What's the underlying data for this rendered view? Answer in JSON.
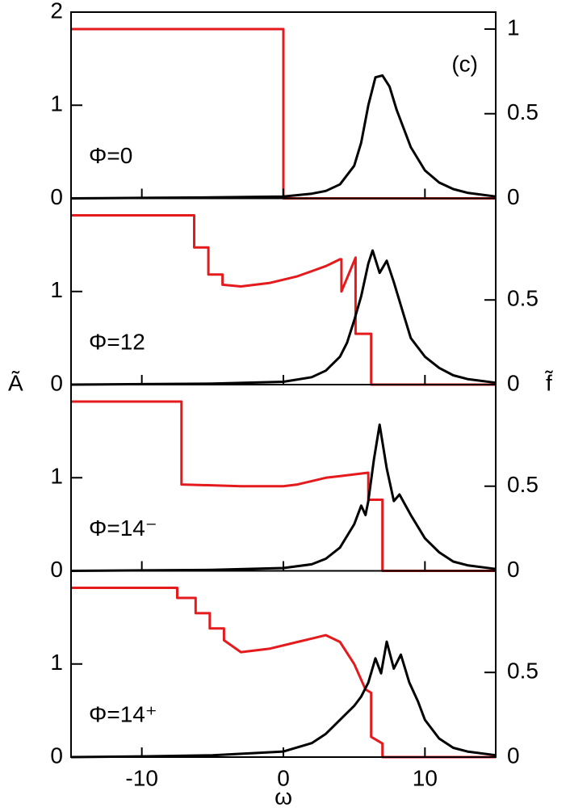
{
  "chart_data": [
    {
      "type": "line",
      "annotation": "Φ=0",
      "label": "(c)",
      "xlim": [
        -15,
        15
      ],
      "xticks": [
        -10,
        0,
        10
      ],
      "ylim": [
        0,
        2
      ],
      "yticks": [
        0,
        1,
        2
      ],
      "y2lim": [
        0,
        1.1
      ],
      "y2ticks": [
        0,
        0.5,
        1
      ],
      "series": [
        {
          "color": "#e41a1c",
          "axis": "y2",
          "x": [
            -15,
            0,
            0,
            15
          ],
          "values": [
            1,
            1,
            0,
            0
          ]
        },
        {
          "color": "#000000",
          "x": [
            -15,
            -10,
            -5,
            0,
            2,
            3,
            4,
            5,
            5.5,
            6,
            6.5,
            7,
            7.5,
            8,
            9,
            10,
            11,
            12,
            13,
            15
          ],
          "values": [
            0,
            0.005,
            0.01,
            0.02,
            0.05,
            0.08,
            0.15,
            0.35,
            0.6,
            1.0,
            1.3,
            1.32,
            1.2,
            0.95,
            0.55,
            0.3,
            0.17,
            0.1,
            0.06,
            0.02
          ]
        }
      ]
    },
    {
      "type": "line",
      "annotation": "Φ=12",
      "ylabel": "Ã",
      "y2label": "f̃",
      "xlim": [
        -15,
        15
      ],
      "xticks": [
        -10,
        0,
        10
      ],
      "ylim": [
        0,
        2
      ],
      "yticks": [
        0,
        1
      ],
      "y2lim": [
        0,
        1.1
      ],
      "y2ticks": [
        0,
        0.5
      ],
      "series": [
        {
          "color": "#e41a1c",
          "axis": "y2",
          "x": [
            -15,
            -6.3,
            -6.3,
            -5.3,
            -5.3,
            -4.3,
            -4.3,
            -3,
            -1,
            1,
            2,
            3,
            3.5,
            4,
            4.1,
            4.1,
            5,
            5.1,
            5.1,
            6.2,
            6.2,
            15
          ],
          "values": [
            1,
            1,
            0.81,
            0.81,
            0.65,
            0.65,
            0.59,
            0.58,
            0.6,
            0.64,
            0.67,
            0.7,
            0.72,
            0.74,
            0.74,
            0.55,
            0.73,
            0.75,
            0.3,
            0.3,
            0,
            0
          ]
        },
        {
          "color": "#000000",
          "x": [
            -15,
            -10,
            -5,
            0,
            2,
            3,
            4,
            4.5,
            5,
            5.5,
            6,
            6.3,
            6.8,
            7.3,
            7.8,
            8.5,
            9,
            10,
            11,
            12,
            13,
            15
          ],
          "values": [
            0,
            0.005,
            0.01,
            0.03,
            0.08,
            0.15,
            0.3,
            0.45,
            0.69,
            0.95,
            1.3,
            1.44,
            1.2,
            1.33,
            1.1,
            0.75,
            0.5,
            0.3,
            0.18,
            0.1,
            0.06,
            0.02
          ]
        }
      ]
    },
    {
      "type": "line",
      "annotation": "Φ=14⁻",
      "xlim": [
        -15,
        15
      ],
      "xticks": [
        -10,
        0,
        10
      ],
      "ylim": [
        0,
        2
      ],
      "yticks": [
        0,
        1
      ],
      "y2lim": [
        0,
        1.1
      ],
      "y2ticks": [
        0,
        0.5
      ],
      "series": [
        {
          "color": "#e41a1c",
          "axis": "y2",
          "x": [
            -15,
            -7.2,
            -7.2,
            -3,
            0,
            1,
            2,
            3,
            4,
            5,
            6,
            6,
            7,
            7,
            15
          ],
          "values": [
            1,
            1,
            0.51,
            0.5,
            0.5,
            0.51,
            0.53,
            0.55,
            0.56,
            0.57,
            0.58,
            0.42,
            0.42,
            0,
            0
          ]
        },
        {
          "color": "#000000",
          "x": [
            -15,
            -10,
            -5,
            0,
            2,
            3,
            4,
            5,
            5.5,
            5.8,
            6,
            6.4,
            6.8,
            7.3,
            7.8,
            8.2,
            9,
            10,
            11,
            12,
            13,
            15
          ],
          "values": [
            0,
            0.005,
            0.01,
            0.03,
            0.07,
            0.13,
            0.25,
            0.5,
            0.7,
            0.6,
            0.75,
            1.2,
            1.57,
            1.1,
            0.75,
            0.82,
            0.6,
            0.35,
            0.2,
            0.1,
            0.06,
            0.02
          ]
        }
      ]
    },
    {
      "type": "line",
      "annotation": "Φ=14⁺",
      "xlabel": "ω",
      "xlim": [
        -15,
        15
      ],
      "xticks": [
        -10,
        0,
        10
      ],
      "ylim": [
        0,
        2
      ],
      "yticks": [
        0,
        1
      ],
      "y2lim": [
        0,
        1.1
      ],
      "y2ticks": [
        0,
        0.5
      ],
      "series": [
        {
          "color": "#e41a1c",
          "axis": "y2",
          "x": [
            -15,
            -7.5,
            -7.5,
            -6.2,
            -6.2,
            -5.2,
            -5.2,
            -4.2,
            -4.2,
            -3,
            -1,
            1,
            2,
            3,
            4,
            5,
            5.8,
            6.2,
            6.2,
            7,
            7,
            15
          ],
          "values": [
            1,
            1,
            0.94,
            0.94,
            0.85,
            0.85,
            0.76,
            0.76,
            0.69,
            0.62,
            0.64,
            0.68,
            0.7,
            0.72,
            0.68,
            0.55,
            0.4,
            0.38,
            0.12,
            0.08,
            0,
            0
          ]
        },
        {
          "color": "#000000",
          "x": [
            -15,
            -10,
            -5,
            0,
            2,
            3,
            4,
            5,
            5.5,
            6,
            6.5,
            6.9,
            7.3,
            7.8,
            8.3,
            8.9,
            9.5,
            10,
            11,
            12,
            13,
            15
          ],
          "values": [
            0,
            0.008,
            0.02,
            0.06,
            0.15,
            0.25,
            0.4,
            0.55,
            0.65,
            0.8,
            1.06,
            0.9,
            1.24,
            0.95,
            1.1,
            0.8,
            0.6,
            0.4,
            0.2,
            0.1,
            0.06,
            0.02
          ]
        }
      ]
    }
  ]
}
